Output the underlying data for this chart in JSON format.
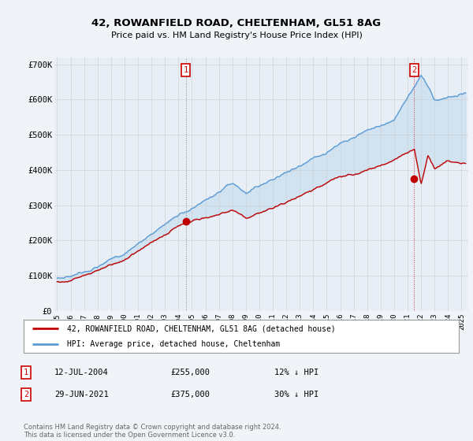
{
  "title": "42, ROWANFIELD ROAD, CHELTENHAM, GL51 8AG",
  "subtitle": "Price paid vs. HM Land Registry's House Price Index (HPI)",
  "ylim": [
    0,
    720000
  ],
  "yticks": [
    0,
    100000,
    200000,
    300000,
    400000,
    500000,
    600000,
    700000
  ],
  "ytick_labels": [
    "£0",
    "£100K",
    "£200K",
    "£300K",
    "£400K",
    "£500K",
    "£600K",
    "£700K"
  ],
  "hpi_color": "#5b9bd5",
  "price_color": "#c00000",
  "fill_color": "#ddeeff",
  "bg_color": "#f0f4f8",
  "plot_bg": "#e8eef5",
  "legend_line1": "42, ROWANFIELD ROAD, CHELTENHAM, GL51 8AG (detached house)",
  "legend_line2": "HPI: Average price, detached house, Cheltenham",
  "note1_num": "1",
  "note1_date": "12-JUL-2004",
  "note1_price": "£255,000",
  "note1_hpi": "12% ↓ HPI",
  "note2_num": "2",
  "note2_date": "29-JUN-2021",
  "note2_price": "£375,000",
  "note2_hpi": "30% ↓ HPI",
  "footer": "Contains HM Land Registry data © Crown copyright and database right 2024.\nThis data is licensed under the Open Government Licence v3.0.",
  "marker1_x": 2004.54,
  "marker1_y": 255000,
  "marker2_x": 2021.49,
  "marker2_y": 375000,
  "xmin": 1994.8,
  "xmax": 2025.5
}
